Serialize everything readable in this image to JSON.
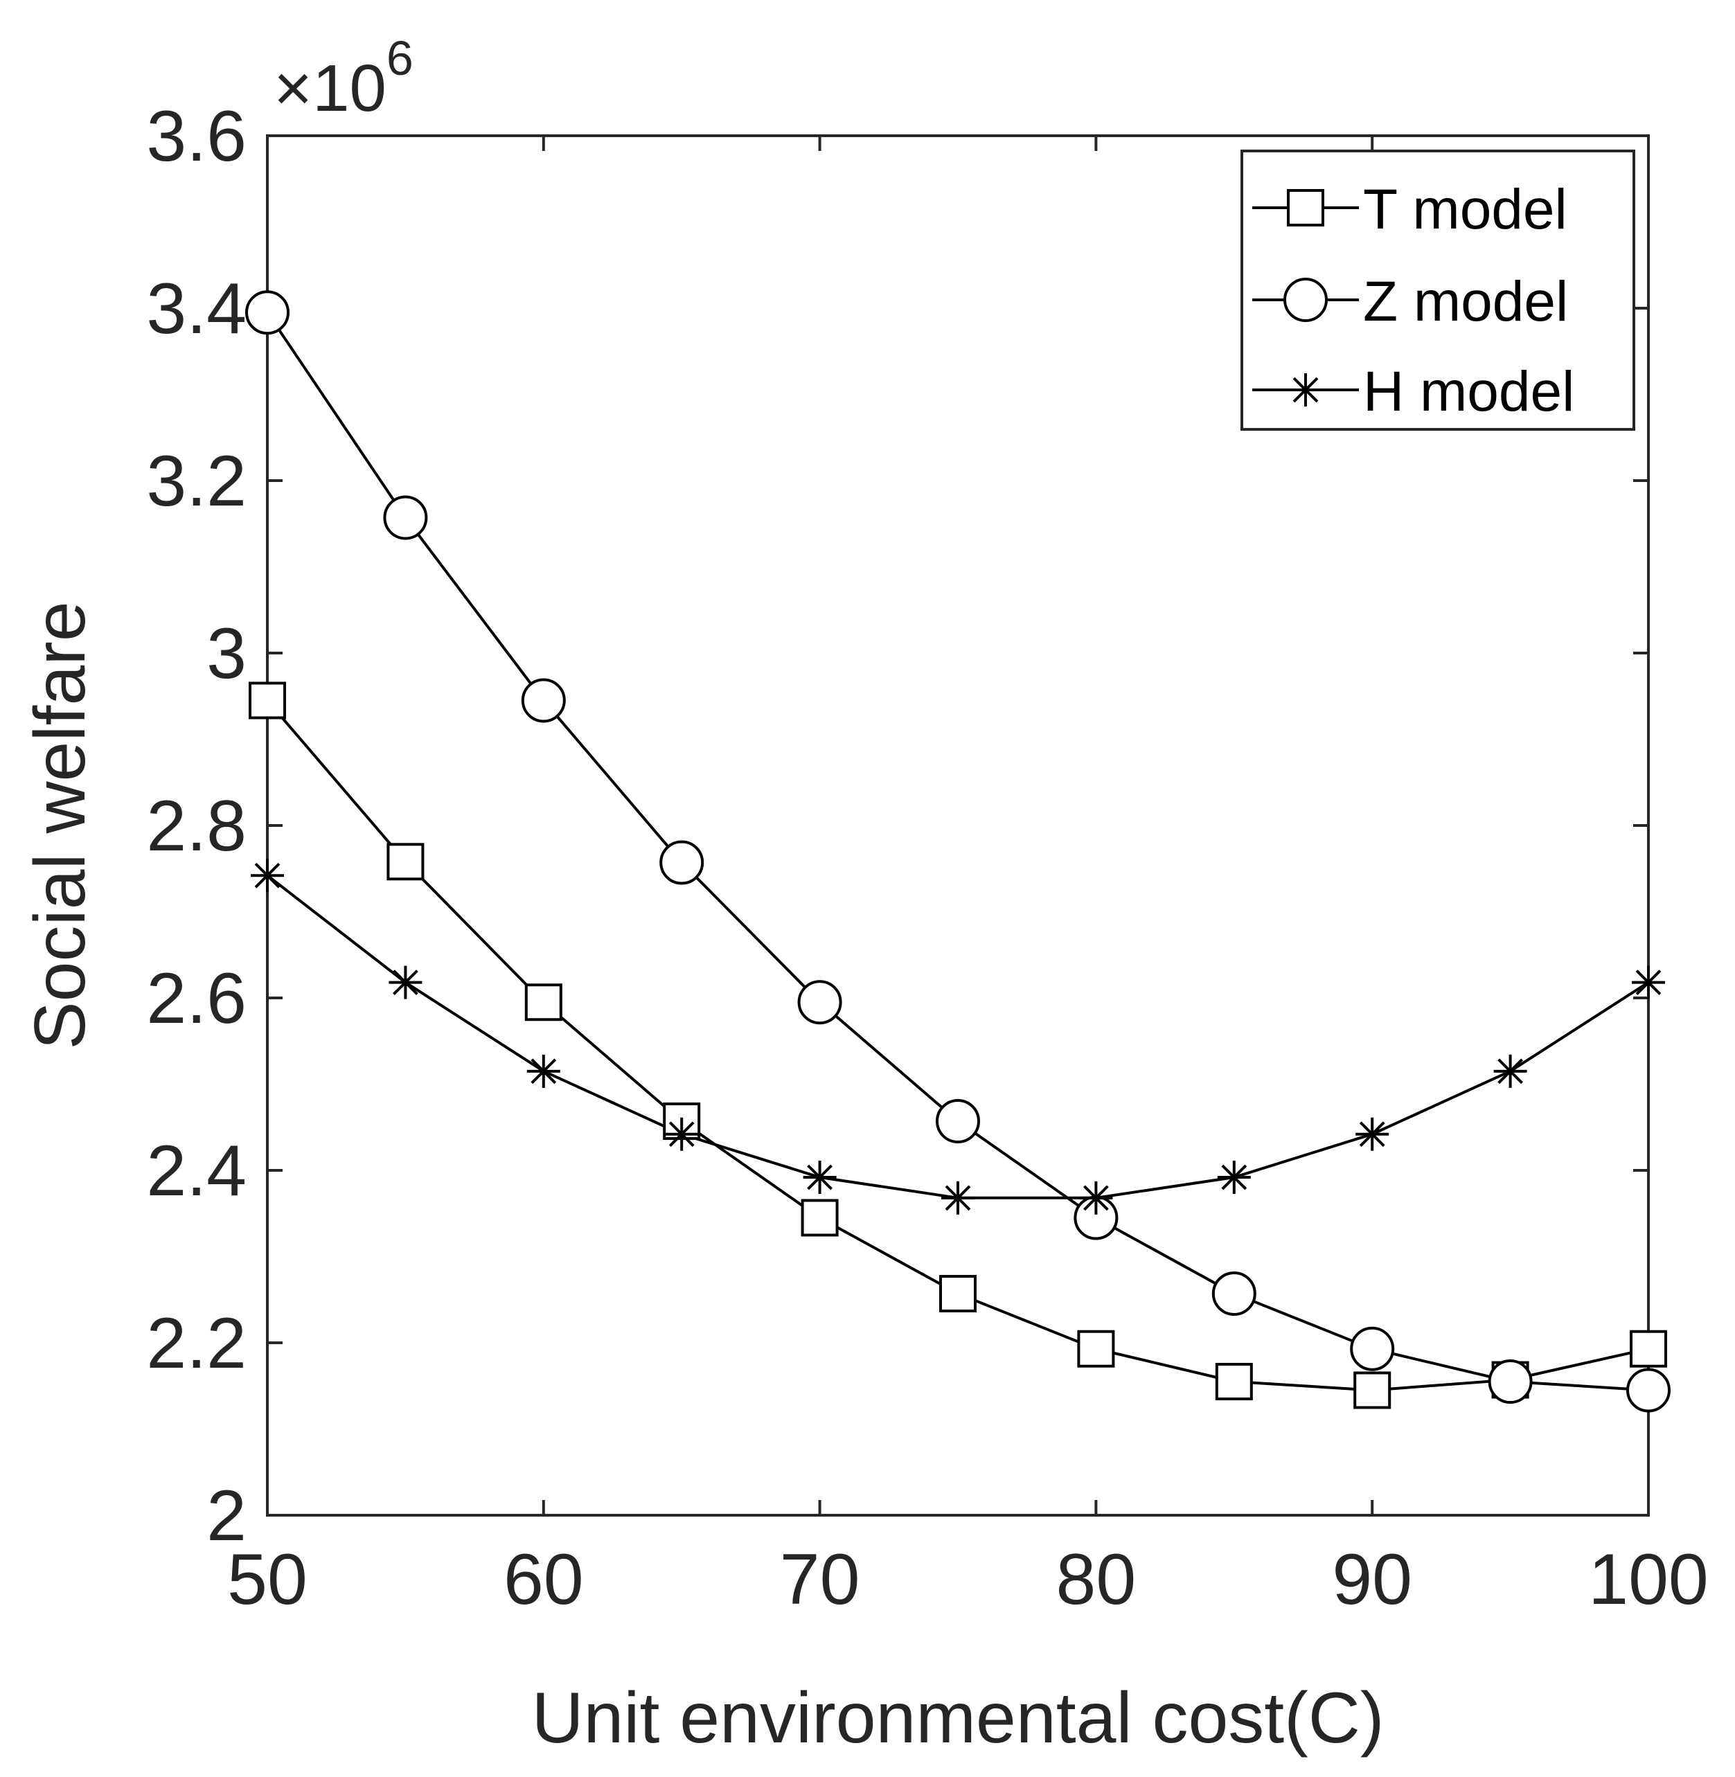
{
  "chart_data": {
    "type": "line",
    "title": "",
    "xlabel": "Unit environmental cost(C)",
    "ylabel": "Social welfare",
    "y_exponent_label": "×10",
    "y_exponent_power": "6",
    "xlim": [
      50,
      100
    ],
    "ylim": [
      2.0,
      3.6
    ],
    "x_ticks": [
      50,
      60,
      70,
      80,
      90,
      100
    ],
    "x_tick_labels": [
      "50",
      "60",
      "70",
      "80",
      "90",
      "100"
    ],
    "y_ticks": [
      2.0,
      2.2,
      2.4,
      2.6,
      2.8,
      3.0,
      3.2,
      3.4,
      3.6
    ],
    "y_tick_labels": [
      "2",
      "2.2",
      "2.4",
      "2.6",
      "2.8",
      "3",
      "3.2",
      "3.4",
      "3.6"
    ],
    "grid": false,
    "legend_position": "top-right",
    "x": [
      50,
      55,
      60,
      65,
      70,
      75,
      80,
      85,
      90,
      95,
      100
    ],
    "series": [
      {
        "name": "T model",
        "marker": "square",
        "values": [
          2.945,
          2.758,
          2.595,
          2.457,
          2.345,
          2.257,
          2.193,
          2.155,
          2.145,
          2.157,
          2.193
        ]
      },
      {
        "name": "Z model",
        "marker": "circle",
        "values": [
          3.395,
          3.157,
          2.945,
          2.757,
          2.595,
          2.457,
          2.345,
          2.257,
          2.193,
          2.155,
          2.145
        ]
      },
      {
        "name": "H model",
        "marker": "asterisk",
        "values": [
          2.742,
          2.618,
          2.515,
          2.442,
          2.392,
          2.368,
          2.368,
          2.392,
          2.442,
          2.515,
          2.618
        ]
      }
    ],
    "colors": {
      "line": "#000000",
      "axis": "#262626",
      "background": "#ffffff"
    }
  }
}
